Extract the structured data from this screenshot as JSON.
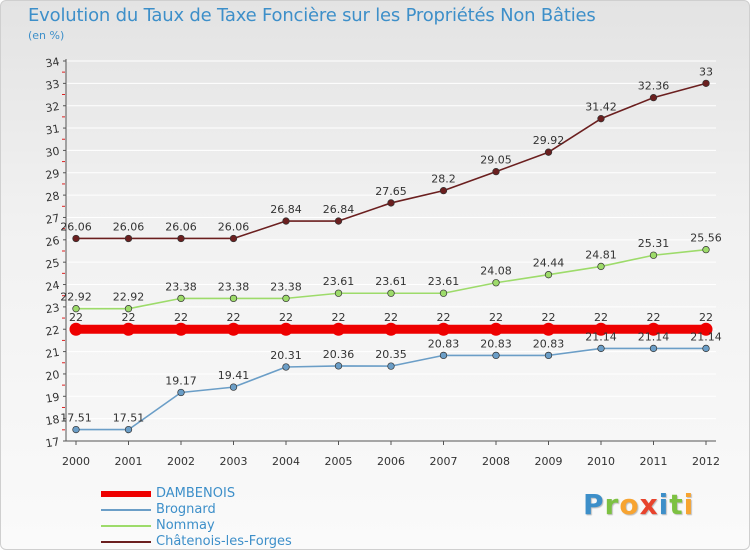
{
  "title": "Evolution du Taux de Taxe Foncière sur les Propriétés Non Bâties",
  "unit_label": "(en %)",
  "logo": {
    "letters": [
      "P",
      "r",
      "o",
      "x",
      "i",
      "t",
      "i"
    ],
    "colors": [
      "#3d8fc9",
      "#7dc142",
      "#f7a431",
      "#e8432d",
      "#3d8fc9",
      "#7dc142",
      "#f7a431"
    ]
  },
  "chart_data": {
    "type": "line",
    "title": "Evolution du Taux de Taxe Foncière sur les Propriétés Non Bâties",
    "ylabel": "(en %)",
    "xlabel": "",
    "ylim": [
      17,
      34
    ],
    "y_ticks": [
      "17",
      "18",
      "19",
      "20",
      "21",
      "22",
      "23",
      "24",
      "25",
      "26",
      "27",
      "28",
      "29",
      "30",
      "31",
      "32",
      "33",
      "34"
    ],
    "x": [
      "2000",
      "2001",
      "2002",
      "2003",
      "2004",
      "2005",
      "2006",
      "2007",
      "2008",
      "2009",
      "2010",
      "2011",
      "2012"
    ],
    "series": [
      {
        "name": "Châtenois-les-Forges",
        "color": "#6b1f1f",
        "values": [
          26.06,
          26.06,
          26.06,
          26.06,
          26.84,
          26.84,
          27.65,
          28.2,
          29.05,
          29.92,
          31.42,
          32.36,
          33
        ],
        "labels": [
          "26.06",
          "26.06",
          "26.06",
          "26.06",
          "26.84",
          "26.84",
          "27.65",
          "28.2",
          "29.05",
          "29.92",
          "31.42",
          "32.36",
          "33"
        ]
      },
      {
        "name": "Nommay",
        "color": "#9ddb6a",
        "values": [
          22.92,
          22.92,
          23.38,
          23.38,
          23.38,
          23.61,
          23.61,
          23.61,
          24.08,
          24.44,
          24.81,
          25.31,
          25.56
        ],
        "labels": [
          "22.92",
          "22.92",
          "23.38",
          "23.38",
          "23.38",
          "23.61",
          "23.61",
          "23.61",
          "24.08",
          "24.44",
          "24.81",
          "25.31",
          "25.56"
        ]
      },
      {
        "name": "DAMBENOIS",
        "color": "#ee0000",
        "values": [
          22,
          22,
          22,
          22,
          22,
          22,
          22,
          22,
          22,
          22,
          22,
          22,
          22
        ],
        "labels": [
          "22",
          "22",
          "22",
          "22",
          "22",
          "22",
          "22",
          "22",
          "22",
          "22",
          "22",
          "22",
          "22"
        ]
      },
      {
        "name": "Brognard",
        "color": "#6b9ec7",
        "values": [
          17.51,
          17.51,
          19.17,
          19.41,
          20.31,
          20.36,
          20.35,
          20.83,
          20.83,
          20.83,
          21.14,
          21.14,
          21.14
        ],
        "labels": [
          "17.51",
          "17.51",
          "19.17",
          "19.41",
          "20.31",
          "20.36",
          "20.35",
          "20.83",
          "20.83",
          "20.83",
          "21.14",
          "21.14",
          "21.14"
        ]
      }
    ],
    "legend": [
      {
        "name": "DAMBENOIS",
        "color": "#ee0000"
      },
      {
        "name": "Brognard",
        "color": "#6b9ec7"
      },
      {
        "name": "Nommay",
        "color": "#9ddb6a"
      },
      {
        "name": "Châtenois-les-Forges",
        "color": "#6b1f1f"
      }
    ],
    "legend_position": "bottom-left"
  }
}
